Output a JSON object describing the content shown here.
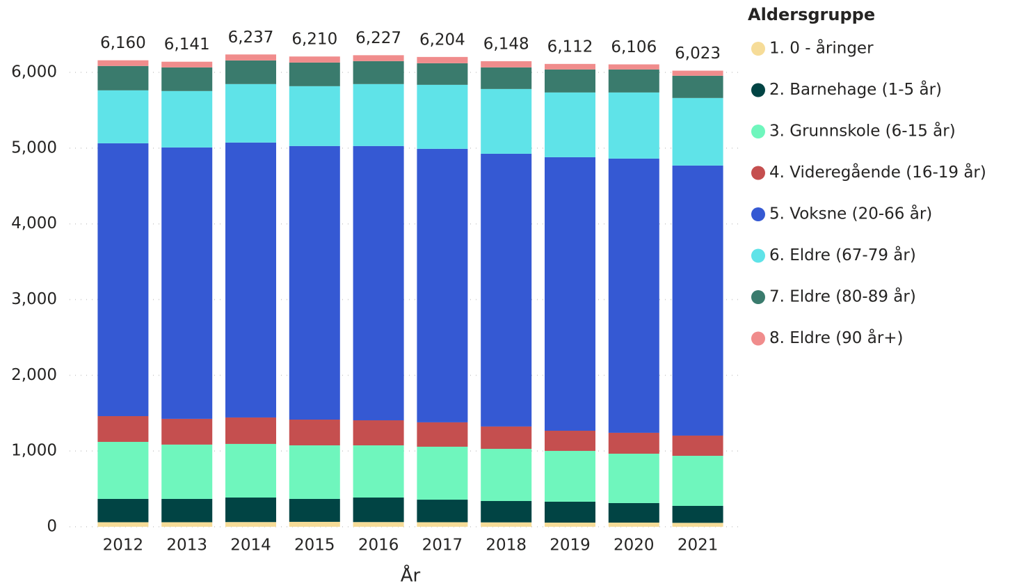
{
  "chart_data": {
    "type": "stacked_bar",
    "x_label": "År",
    "legend_title": "Aldersgruppe",
    "categories": [
      "2012",
      "2013",
      "2014",
      "2015",
      "2016",
      "2017",
      "2018",
      "2019",
      "2020",
      "2021"
    ],
    "series": [
      {
        "name": "1. 0 - åringer",
        "color": "#f6dc98",
        "values": [
          60,
          60,
          62,
          65,
          62,
          60,
          58,
          55,
          55,
          52
        ]
      },
      {
        "name": "2. Barnehage (1-5 år)",
        "color": "#014444",
        "values": [
          308,
          308,
          324,
          303,
          324,
          298,
          282,
          276,
          258,
          224
        ]
      },
      {
        "name": "3. Grunnskole (6-15 år)",
        "color": "#6ff6bd",
        "values": [
          753,
          717,
          708,
          707,
          689,
          699,
          689,
          671,
          652,
          661
        ]
      },
      {
        "name": "4. Videregående (16-19 år)",
        "color": "#c54f4f",
        "values": [
          340,
          340,
          349,
          340,
          331,
          322,
          295,
          266,
          276,
          267
        ]
      },
      {
        "name": "5. Voksne (20-66 år)",
        "color": "#3559d3",
        "values": [
          3603,
          3584,
          3631,
          3613,
          3622,
          3612,
          3602,
          3612,
          3621,
          3566
        ]
      },
      {
        "name": "6. Eldre (67-79 år)",
        "color": "#5fe3e8",
        "values": [
          699,
          745,
          772,
          790,
          818,
          845,
          855,
          855,
          873,
          892
        ]
      },
      {
        "name": "7. Eldre (80-89 år)",
        "color": "#3a7b6d",
        "values": [
          322,
          312,
          312,
          312,
          303,
          285,
          285,
          304,
          304,
          294
        ]
      },
      {
        "name": "8. Eldre (90 år+)",
        "color": "#f08c8c",
        "values": [
          75,
          75,
          79,
          80,
          78,
          83,
          82,
          73,
          67,
          67
        ]
      }
    ],
    "totals": [
      6160,
      6141,
      6237,
      6210,
      6227,
      6204,
      6148,
      6112,
      6106,
      6023
    ],
    "total_labels": [
      "6,160",
      "6,141",
      "6,237",
      "6,210",
      "6,227",
      "6,204",
      "6,148",
      "6,112",
      "6,106",
      "6,023"
    ],
    "ylim": [
      0,
      6300
    ],
    "yticks": [
      0,
      {
        "value": 1000,
        "label": "1,000"
      },
      {
        "value": 2000,
        "label": "2,000"
      },
      {
        "value": 3000,
        "label": "3,000"
      },
      {
        "value": 4000,
        "label": "4,000"
      },
      {
        "value": 5000,
        "label": "5,000"
      },
      {
        "value": 6000,
        "label": "6,000"
      }
    ],
    "grid": true,
    "legend_position": "right"
  }
}
